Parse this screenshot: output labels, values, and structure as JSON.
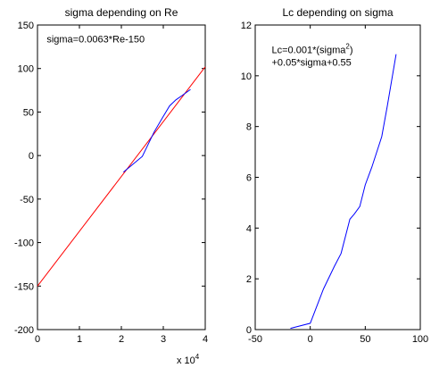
{
  "chart_data": [
    {
      "type": "line",
      "title": "sigma depending on Re",
      "xlabel": "",
      "ylabel": "",
      "xlim": [
        0,
        40000
      ],
      "ylim": [
        -200,
        150
      ],
      "x_ticks": [
        0,
        10000,
        20000,
        30000,
        40000
      ],
      "x_tick_labels": [
        "0",
        "1",
        "2",
        "3",
        "4"
      ],
      "x_multiplier_label": "x 10",
      "x_multiplier_exponent": "4",
      "y_ticks": [
        -200,
        -150,
        -100,
        -50,
        0,
        50,
        100,
        150
      ],
      "y_tick_labels": [
        "-200",
        "-150",
        "-100",
        "-50",
        "0",
        "50",
        "100",
        "150"
      ],
      "grid": false,
      "annotations": [
        {
          "text": "sigma=0.0063*Re-150",
          "x": 2200,
          "y": 130
        }
      ],
      "series": [
        {
          "color": "#ff0000",
          "points": [
            [
              0,
              -150
            ],
            [
              40000,
              102
            ]
          ]
        },
        {
          "color": "#0000ff",
          "points": [
            [
              20500,
              -19
            ],
            [
              25000,
              -1
            ],
            [
              27800,
              27
            ],
            [
              30000,
              45
            ],
            [
              31500,
              57
            ],
            [
              33000,
              64
            ],
            [
              34500,
              69
            ],
            [
              36500,
              76
            ]
          ]
        }
      ]
    },
    {
      "type": "line",
      "title": "Lc depending on sigma",
      "xlabel": "",
      "ylabel": "",
      "xlim": [
        -50,
        100
      ],
      "ylim": [
        0,
        12
      ],
      "x_ticks": [
        -50,
        0,
        50,
        100
      ],
      "x_tick_labels": [
        "-50",
        "0",
        "50",
        "100"
      ],
      "y_ticks": [
        0,
        2,
        4,
        6,
        8,
        10,
        12
      ],
      "y_tick_labels": [
        "0",
        "2",
        "4",
        "6",
        "8",
        "10",
        "12"
      ],
      "grid": false,
      "annotations": [
        {
          "line1": "Lc=0.001*(sigma",
          "superscript": "2",
          "line1_end": ")",
          "line2": "+0.05*sigma+0.55",
          "x": -35,
          "y": 10.9
        }
      ],
      "series": [
        {
          "color": "#0000ff",
          "points": [
            [
              -18,
              0.05
            ],
            [
              0,
              0.25
            ],
            [
              12,
              1.6
            ],
            [
              22,
              2.5
            ],
            [
              28,
              3.0
            ],
            [
              36,
              4.35
            ],
            [
              40,
              4.55
            ],
            [
              45,
              4.85
            ],
            [
              50,
              5.7
            ],
            [
              56,
              6.4
            ],
            [
              65,
              7.6
            ],
            [
              70,
              8.8
            ],
            [
              78,
              10.85
            ]
          ]
        }
      ]
    }
  ]
}
